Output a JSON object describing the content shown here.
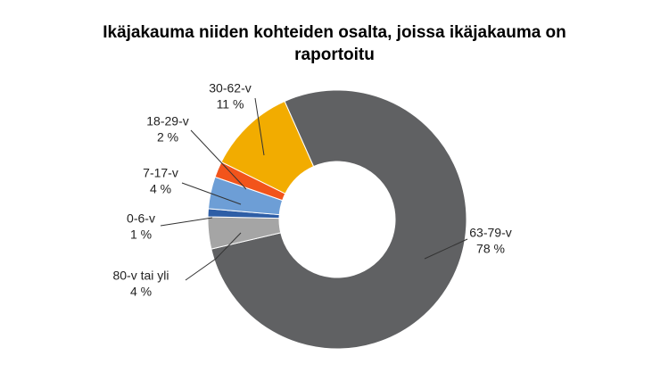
{
  "chart_data": {
    "type": "donut",
    "title": "Ikäjakauma niiden kohteiden osalta, joissa ikäjakauma on raportoitu",
    "categories": [
      "63-79-v",
      "80-v tai yli",
      "0-6-v",
      "7-17-v",
      "18-29-v",
      "30-62-v"
    ],
    "values": [
      78,
      4,
      1,
      4,
      2,
      11
    ],
    "value_labels": [
      "78 %",
      "4 %",
      "1 %",
      "4 %",
      "2 %",
      "11 %"
    ],
    "colors": [
      "#606163",
      "#a5a5a5",
      "#2e5ea6",
      "#6d9ed6",
      "#f2541b",
      "#f2ac00"
    ]
  }
}
